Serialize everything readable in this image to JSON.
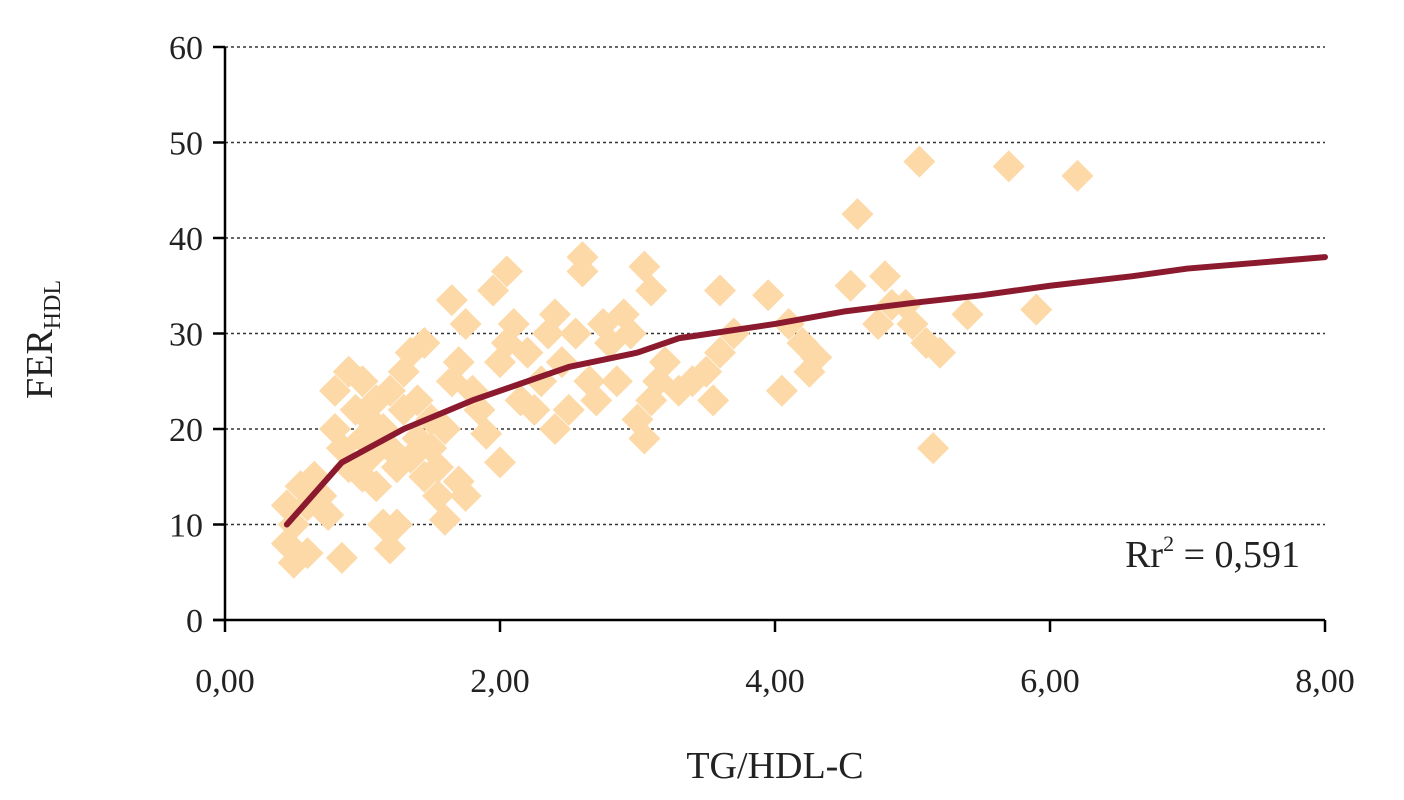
{
  "chart_data": {
    "type": "scatter",
    "title": "",
    "xlabel": "TG/HDL-C",
    "ylabel_main": "FER",
    "ylabel_sub": "HDL",
    "xlim": [
      0,
      8
    ],
    "ylim": [
      0,
      60
    ],
    "x_ticks": [
      0,
      2,
      4,
      6,
      8
    ],
    "x_tick_labels": [
      "0,00",
      "2,00",
      "4,00",
      "6,00",
      "8,00"
    ],
    "y_ticks": [
      0,
      10,
      20,
      30,
      40,
      50,
      60
    ],
    "y_tick_labels": [
      "0",
      "10",
      "20",
      "30",
      "40",
      "50",
      "60"
    ],
    "grid": "horizontal-dotted",
    "legend": "none",
    "annotation": {
      "label": "Rr",
      "superscript": "2",
      "text": " = 0,591"
    },
    "colors": {
      "points": "#fdd9a8",
      "fit_line": "#8b1a2e",
      "axis": "#000000",
      "grid": "#333333"
    },
    "points": [
      [
        0.45,
        12
      ],
      [
        0.45,
        8
      ],
      [
        0.5,
        6
      ],
      [
        0.5,
        10
      ],
      [
        0.55,
        14
      ],
      [
        0.6,
        7
      ],
      [
        0.6,
        12
      ],
      [
        0.65,
        15
      ],
      [
        0.7,
        13
      ],
      [
        0.75,
        11
      ],
      [
        0.8,
        24
      ],
      [
        0.8,
        20
      ],
      [
        0.85,
        18
      ],
      [
        0.85,
        6.5
      ],
      [
        0.9,
        16
      ],
      [
        0.9,
        26
      ],
      [
        0.95,
        22
      ],
      [
        1.0,
        25
      ],
      [
        1.0,
        19
      ],
      [
        1.0,
        15
      ],
      [
        1.05,
        21
      ],
      [
        1.05,
        17
      ],
      [
        1.1,
        23
      ],
      [
        1.1,
        14
      ],
      [
        1.15,
        20
      ],
      [
        1.15,
        10
      ],
      [
        1.2,
        24
      ],
      [
        1.2,
        18
      ],
      [
        1.2,
        7.5
      ],
      [
        1.25,
        16
      ],
      [
        1.25,
        10
      ],
      [
        1.3,
        22
      ],
      [
        1.3,
        26
      ],
      [
        1.35,
        28
      ],
      [
        1.35,
        17
      ],
      [
        1.4,
        19
      ],
      [
        1.4,
        23
      ],
      [
        1.45,
        29
      ],
      [
        1.45,
        15
      ],
      [
        1.5,
        18
      ],
      [
        1.5,
        21
      ],
      [
        1.55,
        16
      ],
      [
        1.55,
        13
      ],
      [
        1.6,
        20
      ],
      [
        1.6,
        10.5
      ],
      [
        1.65,
        33.5
      ],
      [
        1.65,
        25
      ],
      [
        1.7,
        27
      ],
      [
        1.7,
        14.5
      ],
      [
        1.75,
        31
      ],
      [
        1.75,
        13
      ],
      [
        1.8,
        24
      ],
      [
        1.85,
        22
      ],
      [
        1.9,
        19.5
      ],
      [
        1.95,
        34.5
      ],
      [
        2.0,
        27
      ],
      [
        2.0,
        16.5
      ],
      [
        2.05,
        36.5
      ],
      [
        2.05,
        29
      ],
      [
        2.1,
        31
      ],
      [
        2.15,
        23
      ],
      [
        2.2,
        28
      ],
      [
        2.25,
        22
      ],
      [
        2.3,
        25
      ],
      [
        2.35,
        30
      ],
      [
        2.4,
        32
      ],
      [
        2.4,
        20
      ],
      [
        2.45,
        27
      ],
      [
        2.5,
        22
      ],
      [
        2.55,
        30
      ],
      [
        2.6,
        38
      ],
      [
        2.6,
        36.5
      ],
      [
        2.65,
        25
      ],
      [
        2.7,
        23
      ],
      [
        2.75,
        31
      ],
      [
        2.8,
        29
      ],
      [
        2.85,
        25
      ],
      [
        2.9,
        32
      ],
      [
        2.95,
        30
      ],
      [
        3.0,
        21
      ],
      [
        3.05,
        37
      ],
      [
        3.05,
        19
      ],
      [
        3.1,
        34.5
      ],
      [
        3.1,
        23
      ],
      [
        3.15,
        25
      ],
      [
        3.2,
        27
      ],
      [
        3.3,
        24
      ],
      [
        3.4,
        25
      ],
      [
        3.5,
        26
      ],
      [
        3.55,
        23
      ],
      [
        3.6,
        34.5
      ],
      [
        3.6,
        28
      ],
      [
        3.7,
        30
      ],
      [
        3.95,
        34
      ],
      [
        4.05,
        24
      ],
      [
        4.1,
        31
      ],
      [
        4.2,
        29
      ],
      [
        4.25,
        26
      ],
      [
        4.3,
        27.5
      ],
      [
        4.55,
        35
      ],
      [
        4.6,
        42.5
      ],
      [
        4.75,
        31
      ],
      [
        4.8,
        36
      ],
      [
        4.85,
        33
      ],
      [
        4.95,
        33
      ],
      [
        5.0,
        31
      ],
      [
        5.05,
        48
      ],
      [
        5.1,
        29
      ],
      [
        5.15,
        18
      ],
      [
        5.2,
        28
      ],
      [
        5.4,
        32
      ],
      [
        5.7,
        47.5
      ],
      [
        5.9,
        32.5
      ],
      [
        6.2,
        46.5
      ]
    ],
    "fit_line": [
      [
        0.45,
        10
      ],
      [
        0.85,
        16.5
      ],
      [
        1.3,
        20
      ],
      [
        1.8,
        23
      ],
      [
        2.5,
        26.5
      ],
      [
        3.0,
        28
      ],
      [
        3.3,
        29.5
      ],
      [
        4.0,
        31
      ],
      [
        4.5,
        32.3
      ],
      [
        5.0,
        33.2
      ],
      [
        5.5,
        34
      ],
      [
        6.0,
        35
      ],
      [
        6.6,
        36
      ],
      [
        7.0,
        36.8
      ],
      [
        8.0,
        38
      ]
    ]
  }
}
